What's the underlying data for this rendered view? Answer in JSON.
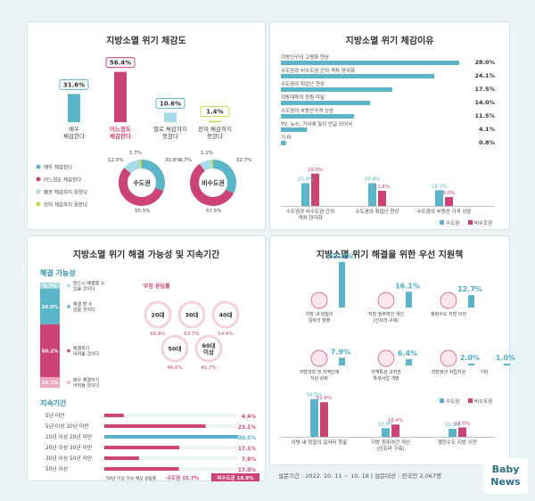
{
  "p1": {
    "title": "지방소멸 위기 체감도",
    "bars": [
      {
        "value": "31.6%",
        "label1": "매우",
        "label2": "체감한다",
        "pct": 31.6,
        "color": "#5bb5c9"
      },
      {
        "value": "56.4%",
        "label1": "어느정도",
        "label2": "체감한다",
        "pct": 56.4,
        "color": "#cc4475"
      },
      {
        "value": "10.6%",
        "label1": "별로 체감하지",
        "label2": "못한다",
        "pct": 10.6,
        "color": "#a6dbe7"
      },
      {
        "value": "1.4%",
        "label1": "전혀 체감하지",
        "label2": "못한다",
        "pct": 1.4,
        "color": "#c8d84a"
      }
    ],
    "legend": [
      "매우 체감한다",
      "어느정도 체감한다",
      "별로 체감하지 못한다",
      "전혀 체감하지 못한다"
    ],
    "donut1": {
      "label": "수도권",
      "values": [
        30.8,
        55.5,
        12.0,
        1.7
      ],
      "labels": [
        "30.8%",
        "55.5%",
        "12.0%",
        "1.7%"
      ]
    },
    "donut2": {
      "label": "비수도권",
      "values": [
        32.7,
        57.5,
        8.7,
        1.1
      ],
      "labels": [
        "32.7%",
        "57.5%",
        "8.7%",
        "1.1%"
      ]
    }
  },
  "p2": {
    "title": "지방소멸 위기 체감이유",
    "bars": [
      {
        "label": "지방인구의 고령화 현상",
        "value": "28.0%",
        "pct": 28.0
      },
      {
        "label": "수도권과 비수도권 간의 격차 양극화",
        "value": "24.1%",
        "pct": 24.1
      },
      {
        "label": "수도권의 취업난 현상",
        "value": "17.5%",
        "pct": 17.5
      },
      {
        "label": "지방대학의 정원 미달",
        "value": "14.0%",
        "pct": 14.0
      },
      {
        "label": "수도권의 부동산가격 상승",
        "value": "11.5%",
        "pct": 11.5
      },
      {
        "label": "TV, 뉴스, 기사에 많이 언급 되어서",
        "value": "4.1%",
        "pct": 4.1
      },
      {
        "label": "기  타",
        "value": "0.8%",
        "pct": 0.8
      }
    ],
    "groups": [
      {
        "label1": "수도권과 비수도권 간의",
        "label2": "격차 양극화",
        "a": 20.4,
        "b": 29.0,
        "al": "20.4%",
        "bl": "29.0%"
      },
      {
        "label1": "수도권의 취업난 현상",
        "label2": "",
        "a": 20.4,
        "b": 13.6,
        "al": "20.4%",
        "bl": "13.6%"
      },
      {
        "label1": "수도권의 부동산 가격 상승",
        "label2": "",
        "a": 14.1,
        "b": 8.0,
        "al": "14.1%",
        "bl": "8.0%"
      }
    ],
    "legend": [
      "수도권",
      "비수도권"
    ]
  },
  "p3": {
    "title": "지방소멸 위기 해결 가능성 및 지속기간",
    "sub1": "해결 가능성",
    "stack": [
      {
        "value": "5.7%",
        "pct": 5.7,
        "color": "#a6dbe7",
        "label1": "반드시 해결할 수",
        "label2": "있을 것이다"
      },
      {
        "value": "34.0%",
        "pct": 34.0,
        "color": "#5bb5c9",
        "label1": "해결 할 수",
        "label2": "있을 것이다"
      },
      {
        "value": "50.2%",
        "pct": 50.2,
        "color": "#cc4475",
        "label1": "해결하기",
        "label2": "어려울 것이다"
      },
      {
        "value": "10.1%",
        "pct": 10.1,
        "color": "#f0a6c1",
        "label1": "매우 해결하기",
        "label2": "어려울 것이다"
      }
    ],
    "bubble_title": "'부정 응답률",
    "bubbles": [
      {
        "age": "20대",
        "value": "66.8%"
      },
      {
        "age": "30대",
        "value": "63.7%"
      },
      {
        "age": "40대",
        "value": "54.4%"
      },
      {
        "age": "50대",
        "value": "46.6%"
      },
      {
        "age": "60대",
        "age2": "이상",
        "value": "45.7%"
      }
    ],
    "sub2": "지속기간",
    "bars": [
      {
        "label": "5년 미만",
        "value": "4.4%",
        "pct": 4.4
      },
      {
        "label": "5년 이상 10년 미만",
        "value": "23.1%",
        "pct": 23.1
      },
      {
        "label": "10년 이상 20년 미만",
        "value": "30.5%",
        "pct": 30.5
      },
      {
        "label": "20년 이상 30년 미만",
        "value": "17.1%",
        "pct": 17.1
      },
      {
        "label": "30년 이상 50년 미만",
        "value": "7.9%",
        "pct": 7.9
      },
      {
        "label": "50년 이상",
        "value": "17.0%",
        "pct": 17.0
      }
    ],
    "footnote": "50년 이상 지속 예상 응답률",
    "foot_a": "수도권 15.7%",
    "foot_b": "비수도권 18.9%"
  },
  "p4": {
    "title": "지방소멸 위기 해결을 위한 우선 지원책",
    "items": [
      {
        "value": "53.8%",
        "pct": 53.8,
        "label1": "지방 내 양질의",
        "label2": "일자리 창출"
      },
      {
        "value": "16.1%",
        "pct": 16.1,
        "label1": "지방 청주여건 개선",
        "label2": "(인프라 구축)"
      },
      {
        "value": "12.7%",
        "pct": 12.7,
        "label1": "행정수도 지방 이전",
        "label2": ""
      },
      {
        "value": "7.9%",
        "pct": 7.9,
        "label1": "지방대학 및 지역인재",
        "label2": "지원 강화"
      },
      {
        "value": "6.4%",
        "pct": 6.4,
        "label1": "지역특성 고려한",
        "label2": "특색사업 개발"
      },
      {
        "value": "2.0%",
        "pct": 2.0,
        "label1": "지방청년 자립지원",
        "label2": ""
      },
      {
        "value": "1.0%",
        "pct": 1.0,
        "label1": "기타",
        "label2": ""
      }
    ],
    "groups": [
      {
        "label1": "지방 내 양질의 일자리 창출",
        "label2": "",
        "a": 56.5,
        "b": 51.8,
        "al": "56.5%",
        "bl": "51.8%"
      },
      {
        "label1": "지방 청주여건 개선",
        "label2": "(인프라 구축)",
        "a": 12.9,
        "b": 18.4,
        "al": "12.9%",
        "bl": "18.4%"
      },
      {
        "label1": "행정수도 지방 이전",
        "label2": "",
        "a": 11.9,
        "b": 14.0,
        "al": "11.9%",
        "bl": "14.0%"
      }
    ],
    "legend": [
      "수도권",
      "비수도권"
    ]
  },
  "footer": "설문기간 : 2022. 10. 11 ~ 10. 18  |  설문대상 : 전국민 2,067명",
  "logo": [
    "Baby",
    "News"
  ],
  "chart_data": [
    {
      "type": "bar",
      "title": "지방소멸 위기 체감도",
      "categories": [
        "매우 체감한다",
        "어느정도 체감한다",
        "별로 체감하지 못한다",
        "전혀 체감하지 못한다"
      ],
      "values": [
        31.6,
        56.4,
        10.6,
        1.4
      ]
    },
    {
      "type": "pie",
      "title": "수도권",
      "categories": [
        "매우 체감한다",
        "어느정도 체감한다",
        "별로 체감하지 못한다",
        "전혀 체감하지 못한다"
      ],
      "values": [
        30.8,
        55.5,
        12.0,
        1.7
      ]
    },
    {
      "type": "pie",
      "title": "비수도권",
      "categories": [
        "매우 체감한다",
        "어느정도 체감한다",
        "별로 체감하지 못한다",
        "전혀 체감하지 못한다"
      ],
      "values": [
        32.7,
        57.5,
        8.7,
        1.1
      ]
    },
    {
      "type": "bar",
      "title": "지방소멸 위기 체감이유",
      "categories": [
        "지방인구의 고령화 현상",
        "수도권과 비수도권 간의 격차 양극화",
        "수도권의 취업난 현상",
        "지방대학의 정원 미달",
        "수도권의 부동산가격 상승",
        "TV, 뉴스, 기사에 많이 언급 되어서",
        "기  타"
      ],
      "values": [
        28.0,
        24.1,
        17.5,
        14.0,
        11.5,
        4.1,
        0.8
      ]
    },
    {
      "type": "bar",
      "categories": [
        "수도권과 비수도권 간의 격차 양극화",
        "수도권의 취업난 현상",
        "수도권의 부동산 가격 상승"
      ],
      "series": [
        {
          "name": "수도권",
          "values": [
            20.4,
            20.4,
            14.1
          ]
        },
        {
          "name": "비수도권",
          "values": [
            29.0,
            13.6,
            8.0
          ]
        }
      ]
    },
    {
      "type": "bar",
      "title": "해결 가능성",
      "categories": [
        "반드시 해결할 수 있을 것이다",
        "해결 할 수 있을 것이다",
        "해결하기 어려울 것이다",
        "매우 해결하기 어려울 것이다"
      ],
      "values": [
        5.7,
        34.0,
        50.2,
        10.1
      ]
    },
    {
      "type": "bar",
      "title": "'부정 응답률",
      "categories": [
        "20대",
        "30대",
        "40대",
        "50대",
        "60대 이상"
      ],
      "values": [
        66.8,
        63.7,
        54.4,
        46.6,
        45.7
      ]
    },
    {
      "type": "bar",
      "title": "지속기간",
      "categories": [
        "5년 미만",
        "5년 이상 10년 미만",
        "10년 이상 20년 미만",
        "20년 이상 30년 미만",
        "30년 이상 50년 미만",
        "50년 이상"
      ],
      "values": [
        4.4,
        23.1,
        30.5,
        17.1,
        7.9,
        17.0
      ]
    },
    {
      "type": "bar",
      "title": "지방소멸 위기 해결을 위한 우선 지원책",
      "categories": [
        "지방 내 양질의 일자리 창출",
        "지방 청주여건 개선 (인프라 구축)",
        "행정수도 지방 이전",
        "지방대학 및 지역인재 지원 강화",
        "지역특성 고려한 특색사업 개발",
        "지방청년 자립지원",
        "기타"
      ],
      "values": [
        53.8,
        16.1,
        12.7,
        7.9,
        6.4,
        2.0,
        1.0
      ]
    },
    {
      "type": "bar",
      "categories": [
        "지방 내 양질의 일자리 창출",
        "지방 청주여건 개선 (인프라 구축)",
        "행정수도 지방 이전"
      ],
      "series": [
        {
          "name": "수도권",
          "values": [
            56.5,
            12.9,
            11.9
          ]
        },
        {
          "name": "비수도권",
          "values": [
            51.8,
            18.4,
            14.0
          ]
        }
      ]
    }
  ]
}
